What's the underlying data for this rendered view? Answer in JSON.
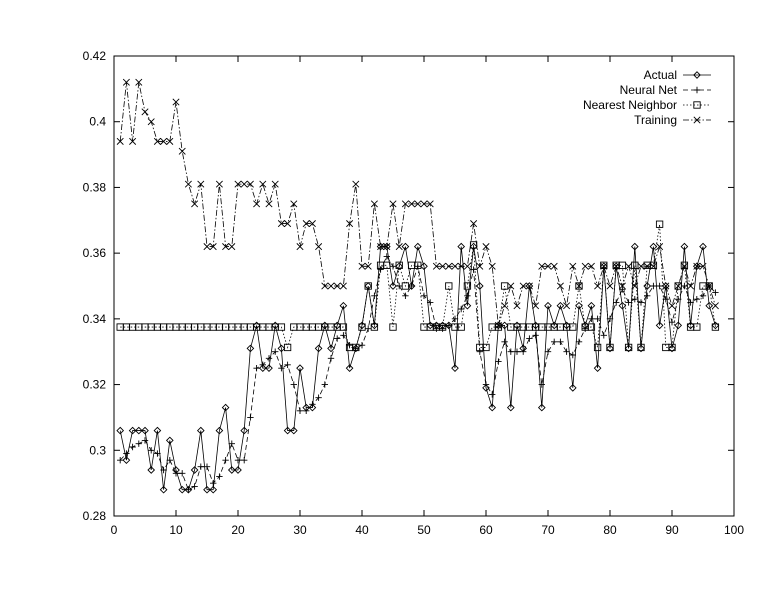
{
  "chart_data": {
    "type": "line",
    "title": "",
    "xlabel": "",
    "ylabel": "",
    "xlim": [
      0,
      100
    ],
    "ylim": [
      0.28,
      0.42
    ],
    "x_ticks": [
      "0",
      "10",
      "20",
      "30",
      "40",
      "50",
      "60",
      "70",
      "80",
      "90",
      "100"
    ],
    "y_ticks": [
      "0.28",
      "0.3",
      "0.32",
      "0.34",
      "0.36",
      "0.38",
      "0.4",
      "0.42"
    ],
    "legend_position": "top-right",
    "grid": false,
    "x": [
      1,
      2,
      3,
      4,
      5,
      6,
      7,
      8,
      9,
      10,
      11,
      12,
      13,
      14,
      15,
      16,
      17,
      18,
      19,
      20,
      21,
      22,
      23,
      24,
      25,
      26,
      27,
      28,
      29,
      30,
      31,
      32,
      33,
      34,
      35,
      36,
      37,
      38,
      39,
      40,
      41,
      42,
      43,
      44,
      45,
      46,
      47,
      48,
      49,
      50,
      51,
      52,
      53,
      54,
      55,
      56,
      57,
      58,
      59,
      60,
      61,
      62,
      63,
      64,
      65,
      66,
      67,
      68,
      69,
      70,
      71,
      72,
      73,
      74,
      75,
      76,
      77,
      78,
      79,
      80,
      81,
      82,
      83,
      84,
      85,
      86,
      87,
      88,
      89,
      90,
      91,
      92,
      93,
      94,
      95,
      96,
      97
    ],
    "series": [
      {
        "name": "Actual",
        "marker": "diamond",
        "dash": "solid",
        "values": [
          0.306,
          0.297,
          0.306,
          0.306,
          0.306,
          0.294,
          0.306,
          0.288,
          0.303,
          0.294,
          0.288,
          0.288,
          0.294,
          0.306,
          0.288,
          0.288,
          0.306,
          0.313,
          0.294,
          0.294,
          0.306,
          0.331,
          0.338,
          0.325,
          0.325,
          0.338,
          0.331,
          0.306,
          0.306,
          0.325,
          0.313,
          0.313,
          0.331,
          0.338,
          0.331,
          0.338,
          0.344,
          0.325,
          0.331,
          0.338,
          0.35,
          0.338,
          0.362,
          0.362,
          0.35,
          0.356,
          0.362,
          0.35,
          0.362,
          0.356,
          0.338,
          0.338,
          0.338,
          0.338,
          0.325,
          0.362,
          0.344,
          0.362,
          0.35,
          0.319,
          0.313,
          0.338,
          0.338,
          0.313,
          0.338,
          0.331,
          0.35,
          0.338,
          0.313,
          0.344,
          0.338,
          0.344,
          0.338,
          0.319,
          0.344,
          0.338,
          0.344,
          0.325,
          0.356,
          0.331,
          0.356,
          0.344,
          0.331,
          0.362,
          0.331,
          0.35,
          0.362,
          0.338,
          0.35,
          0.331,
          0.338,
          0.362,
          0.338,
          0.356,
          0.362,
          0.344,
          0.338
        ]
      },
      {
        "name": "Neural Net",
        "marker": "plus",
        "dash": "dashed",
        "values": [
          0.297,
          0.299,
          0.301,
          0.302,
          0.303,
          0.3,
          0.299,
          0.294,
          0.297,
          0.293,
          0.293,
          0.288,
          0.289,
          0.295,
          0.295,
          0.29,
          0.292,
          0.297,
          0.302,
          0.297,
          0.297,
          0.31,
          0.325,
          0.326,
          0.328,
          0.33,
          0.325,
          0.326,
          0.32,
          0.312,
          0.312,
          0.314,
          0.316,
          0.32,
          0.328,
          0.334,
          0.335,
          0.332,
          0.331,
          0.332,
          0.337,
          0.347,
          0.355,
          0.359,
          0.356,
          0.35,
          0.347,
          0.35,
          0.356,
          0.347,
          0.345,
          0.337,
          0.337,
          0.338,
          0.34,
          0.343,
          0.347,
          0.355,
          0.33,
          0.32,
          0.317,
          0.327,
          0.333,
          0.33,
          0.33,
          0.33,
          0.334,
          0.335,
          0.32,
          0.33,
          0.333,
          0.333,
          0.33,
          0.329,
          0.333,
          0.337,
          0.34,
          0.34,
          0.335,
          0.34,
          0.345,
          0.349,
          0.345,
          0.346,
          0.345,
          0.347,
          0.35,
          0.35,
          0.346,
          0.339,
          0.346,
          0.35,
          0.345,
          0.346,
          0.347,
          0.35,
          0.348
        ]
      },
      {
        "name": "Nearest Neighbor",
        "marker": "square",
        "dash": "dotted",
        "values": [
          0.3375,
          0.3375,
          0.3375,
          0.3375,
          0.3375,
          0.3375,
          0.3375,
          0.3375,
          0.3375,
          0.3375,
          0.3375,
          0.3375,
          0.3375,
          0.3375,
          0.3375,
          0.3375,
          0.3375,
          0.3375,
          0.3375,
          0.3375,
          0.3375,
          0.3375,
          0.3375,
          0.3375,
          0.3375,
          0.3375,
          0.3375,
          0.3313,
          0.3375,
          0.3375,
          0.3375,
          0.3375,
          0.3375,
          0.3375,
          0.3375,
          0.3375,
          0.3375,
          0.3313,
          0.3313,
          0.3375,
          0.35,
          0.3375,
          0.3563,
          0.3563,
          0.3375,
          0.3563,
          0.35,
          0.3563,
          0.3563,
          0.3375,
          0.3375,
          0.3375,
          0.3375,
          0.35,
          0.3375,
          0.3375,
          0.35,
          0.3625,
          0.3313,
          0.3313,
          0.3375,
          0.3375,
          0.35,
          0.3375,
          0.3375,
          0.3375,
          0.3375,
          0.3375,
          0.3375,
          0.3375,
          0.3375,
          0.3375,
          0.3375,
          0.3375,
          0.35,
          0.3375,
          0.3375,
          0.3313,
          0.3563,
          0.3313,
          0.3563,
          0.3563,
          0.3313,
          0.3563,
          0.3313,
          0.3563,
          0.3563,
          0.3688,
          0.3313,
          0.3313,
          0.35,
          0.3563,
          0.3375,
          0.3375,
          0.35,
          0.35,
          0.3375
        ]
      },
      {
        "name": "Training",
        "marker": "cross",
        "dash": "dashdot",
        "values": [
          0.394,
          0.412,
          0.394,
          0.412,
          0.403,
          0.4,
          0.394,
          0.394,
          0.394,
          0.406,
          0.391,
          0.381,
          0.375,
          0.381,
          0.362,
          0.362,
          0.381,
          0.362,
          0.362,
          0.381,
          0.381,
          0.381,
          0.375,
          0.381,
          0.375,
          0.381,
          0.369,
          0.369,
          0.375,
          0.362,
          0.369,
          0.369,
          0.362,
          0.35,
          0.35,
          0.35,
          0.35,
          0.369,
          0.381,
          0.356,
          0.356,
          0.375,
          0.362,
          0.362,
          0.375,
          0.362,
          0.375,
          0.375,
          0.375,
          0.375,
          0.375,
          0.356,
          0.356,
          0.356,
          0.356,
          0.356,
          0.356,
          0.369,
          0.356,
          0.362,
          0.356,
          0.338,
          0.344,
          0.35,
          0.344,
          0.35,
          0.35,
          0.344,
          0.356,
          0.356,
          0.356,
          0.35,
          0.344,
          0.356,
          0.35,
          0.356,
          0.356,
          0.35,
          0.356,
          0.35,
          0.356,
          0.35,
          0.356,
          0.35,
          0.356,
          0.356,
          0.356,
          0.362,
          0.35,
          0.344,
          0.35,
          0.356,
          0.35,
          0.356,
          0.356,
          0.35,
          0.344
        ]
      }
    ]
  }
}
